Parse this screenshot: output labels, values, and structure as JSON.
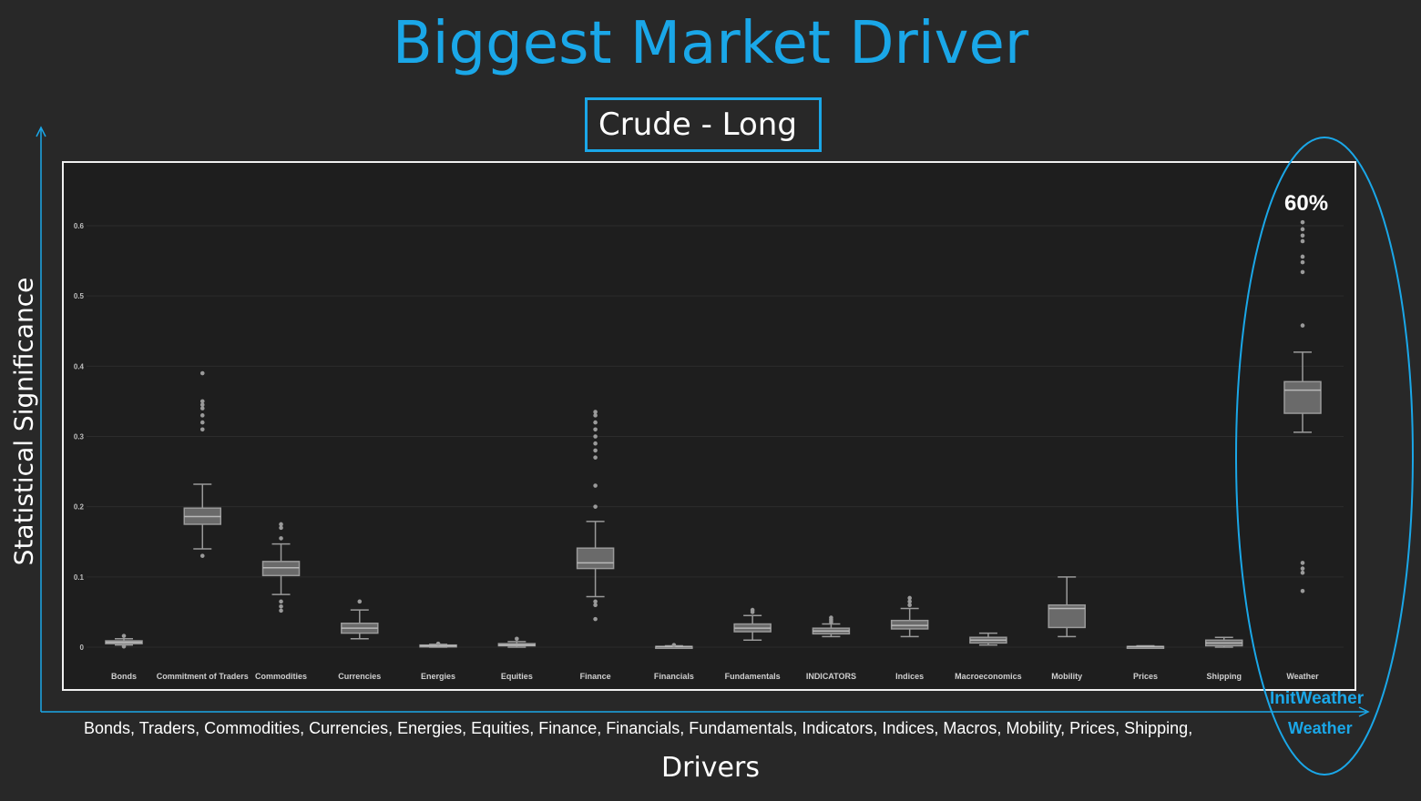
{
  "title": "Biggest Market Driver",
  "subtitle": "Crude - Long",
  "y_axis_title": "Statistical Significance",
  "x_axis_title": "Drivers",
  "drivers_list": "Bonds, Traders, Commodities, Currencies, Energies,  Equities,  Finance,  Financials, Fundamentals, Indicators, Indices,  Macros,  Mobility, Prices, Shipping,",
  "drivers_highlight": "Weather",
  "init_weather_label": "InitWeather",
  "highlight_percent": "60%",
  "colors": {
    "accent": "#1AA7E8",
    "background": "#282828",
    "plot_background": "#1e1e1e",
    "box_fill": "#6a6a6a",
    "box_stroke": "#9a9a9a"
  },
  "chart_data": {
    "type": "box",
    "title": "",
    "xlabel": "",
    "ylabel": "",
    "ylim": [
      -0.01,
      0.66
    ],
    "yticks": [
      0,
      0.1,
      0.2,
      0.3,
      0.4,
      0.5,
      0.6
    ],
    "ytick_labels": [
      "0",
      "0.1",
      "0.2",
      "0.3",
      "0.4",
      "0.5",
      "0.6"
    ],
    "grid": true,
    "categories": [
      "Bonds",
      "Commitment of Traders",
      "Commodities",
      "Currencies",
      "Energies",
      "Equities",
      "Finance",
      "Financials",
      "Fundamentals",
      "INDICATORS",
      "Indices",
      "Macroeconomics",
      "Mobility",
      "Prices",
      "Shipping",
      "Weather"
    ],
    "boxes": [
      {
        "whisker_low": 0.003,
        "q1": 0.005,
        "median": 0.007,
        "q3": 0.009,
        "whisker_high": 0.012,
        "outliers": [
          0.016,
          0.001
        ]
      },
      {
        "whisker_low": 0.14,
        "q1": 0.175,
        "median": 0.186,
        "q3": 0.198,
        "whisker_high": 0.232,
        "outliers": [
          0.13,
          0.31,
          0.32,
          0.33,
          0.34,
          0.345,
          0.35,
          0.39
        ]
      },
      {
        "whisker_low": 0.075,
        "q1": 0.102,
        "median": 0.113,
        "q3": 0.122,
        "whisker_high": 0.147,
        "outliers": [
          0.052,
          0.058,
          0.065,
          0.155,
          0.17,
          0.175
        ]
      },
      {
        "whisker_low": 0.012,
        "q1": 0.02,
        "median": 0.027,
        "q3": 0.034,
        "whisker_high": 0.053,
        "outliers": [
          0.065
        ]
      },
      {
        "whisker_low": 0.0,
        "q1": 0.001,
        "median": 0.002,
        "q3": 0.003,
        "whisker_high": 0.004,
        "outliers": [
          0.005
        ]
      },
      {
        "whisker_low": 0.0,
        "q1": 0.002,
        "median": 0.003,
        "q3": 0.005,
        "whisker_high": 0.008,
        "outliers": [
          0.012
        ]
      },
      {
        "whisker_low": 0.072,
        "q1": 0.112,
        "median": 0.12,
        "q3": 0.141,
        "whisker_high": 0.179,
        "outliers": [
          0.04,
          0.06,
          0.065,
          0.2,
          0.23,
          0.27,
          0.28,
          0.29,
          0.3,
          0.31,
          0.32,
          0.33,
          0.335
        ]
      },
      {
        "whisker_low": 0.0,
        "q1": 0.0,
        "median": 0.001,
        "q3": 0.001,
        "whisker_high": 0.002,
        "outliers": [
          0.003
        ]
      },
      {
        "whisker_low": 0.01,
        "q1": 0.022,
        "median": 0.027,
        "q3": 0.033,
        "whisker_high": 0.045,
        "outliers": [
          0.05,
          0.053
        ]
      },
      {
        "whisker_low": 0.015,
        "q1": 0.019,
        "median": 0.023,
        "q3": 0.027,
        "whisker_high": 0.033,
        "outliers": [
          0.036,
          0.039,
          0.042
        ]
      },
      {
        "whisker_low": 0.015,
        "q1": 0.026,
        "median": 0.031,
        "q3": 0.038,
        "whisker_high": 0.055,
        "outliers": [
          0.06,
          0.065,
          0.07
        ]
      },
      {
        "whisker_low": 0.003,
        "q1": 0.006,
        "median": 0.01,
        "q3": 0.014,
        "whisker_high": 0.02,
        "outliers": []
      },
      {
        "whisker_low": 0.015,
        "q1": 0.028,
        "median": 0.055,
        "q3": 0.06,
        "whisker_high": 0.1,
        "outliers": []
      },
      {
        "whisker_low": 0.0,
        "q1": 0.0,
        "median": 0.001,
        "q3": 0.001,
        "whisker_high": 0.002,
        "outliers": []
      },
      {
        "whisker_low": 0.0,
        "q1": 0.002,
        "median": 0.006,
        "q3": 0.01,
        "whisker_high": 0.014,
        "outliers": []
      },
      {
        "whisker_low": 0.306,
        "q1": 0.333,
        "median": 0.366,
        "q3": 0.378,
        "whisker_high": 0.42,
        "outliers": [
          0.08,
          0.106,
          0.112,
          0.12,
          0.458,
          0.534,
          0.548,
          0.556,
          0.578,
          0.586,
          0.595,
          0.605
        ]
      }
    ]
  }
}
